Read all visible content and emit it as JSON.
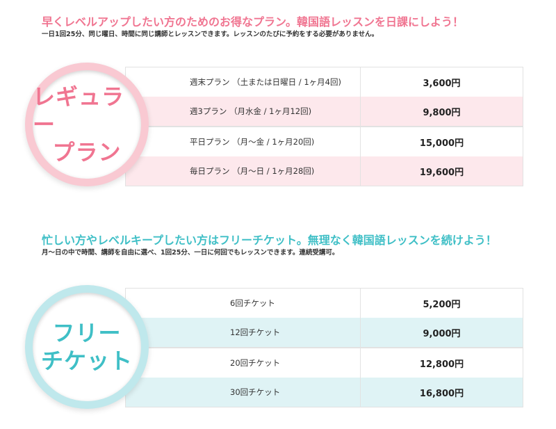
{
  "colors": {
    "pink_accent": "#f07591",
    "pink_row": "#fde8ec",
    "pink_ring": "#f9c9d2",
    "teal_accent": "#3fbfc6",
    "teal_row": "#dff3f5",
    "teal_ring": "#bfe8ec"
  },
  "regular": {
    "headline": "早くレベルアップしたい方のためのお得なプラン。韓国語レッスンを日課にしよう！",
    "subline": "一日1回25分、同じ曜日、時間に同じ講師とレッスンできます。レッスンのたびに予約をする必要がありません。",
    "badge_line1": "レギュラー",
    "badge_line2": "プラン",
    "plans": [
      {
        "name": "週末プラン （土または日曜日 / 1ヶ月4回)",
        "price": "3,600円"
      },
      {
        "name": "週3プラン （月水金 / 1ヶ月12回)",
        "price": "9,800円"
      },
      {
        "name": "平日プラン （月～金 / 1ヶ月20回)",
        "price": "15,000円"
      },
      {
        "name": "毎日プラン （月～日 / 1ヶ月28回)",
        "price": "19,600円"
      }
    ]
  },
  "free": {
    "headline": "忙しい方やレベルキープしたい方はフリーチケット。無理なく韓国語レッスンを続けよう！",
    "subline": "月～日の中で時間、講師を自由に選べ、1回25分、一日に何回でもレッスンできます。連続受講可。",
    "badge_line1": "フリー",
    "badge_line2": "チケット",
    "tickets": [
      {
        "name": "6回チケット",
        "price": "5,200円"
      },
      {
        "name": "12回チケット",
        "price": "9,000円"
      },
      {
        "name": "20回チケット",
        "price": "12,800円"
      },
      {
        "name": "30回チケット",
        "price": "16,800円"
      }
    ]
  }
}
